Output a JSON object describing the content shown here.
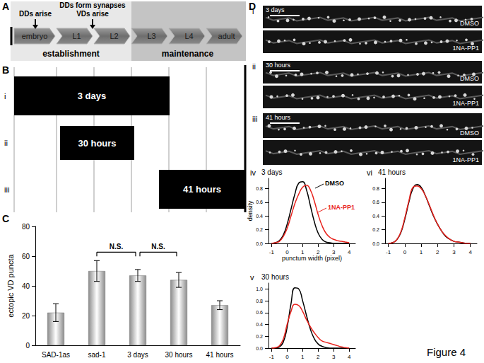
{
  "figure_label": "Figure 4",
  "panel_a": {
    "label": "A",
    "stages": [
      "embryo",
      "L1",
      "L2",
      "L3",
      "L4",
      "adult"
    ],
    "phases": [
      "establishment",
      "maintenance"
    ],
    "events": [
      {
        "lines": [
          "DDs arise"
        ],
        "stage": "embryo"
      },
      {
        "lines": [
          "DDs form synapses",
          "VDs arise"
        ],
        "stage": "L1"
      }
    ]
  },
  "panel_b": {
    "label": "B",
    "treatments": [
      {
        "label": "i",
        "text": "3 days"
      },
      {
        "label": "ii",
        "text": "30 hours"
      },
      {
        "label": "iii",
        "text": "41 hours"
      }
    ]
  },
  "panel_d": {
    "label": "D",
    "images": [
      {
        "label": "i",
        "title": "3 days",
        "rows": [
          "DMSO",
          "1NA-PP1"
        ]
      },
      {
        "label": "ii",
        "title": "30 hours",
        "rows": [
          "DMSO",
          "1NA-PP1"
        ]
      },
      {
        "label": "iii",
        "title": "41 hours",
        "rows": [
          "DMSO",
          "1NA-PP1"
        ]
      }
    ]
  },
  "chart_data": [
    {
      "type": "bar",
      "panel_label": "C",
      "y_label": "ectopic VD puncta",
      "categories": [
        "SAD-1as",
        "sad-1",
        "3 days",
        "30 hours",
        "41 hours"
      ],
      "values": [
        22,
        50,
        47,
        44,
        27
      ],
      "errors": [
        6,
        7,
        4,
        5,
        3
      ],
      "color": "#8c8c8c",
      "ylim": [
        0,
        80
      ],
      "yticks": [
        0,
        20,
        40,
        60,
        80
      ],
      "annotations": [
        {
          "from": "sad-1",
          "to": "3 days",
          "text": "N.S."
        },
        {
          "from": "3 days",
          "to": "30 hours",
          "text": "N.S."
        }
      ]
    },
    {
      "type": "line",
      "panel_label": "iv",
      "title": "3 days",
      "x_label": "punctum width (pixel)",
      "y_label": "density",
      "x": [
        -1,
        -0.75,
        -0.5,
        -0.25,
        0,
        0.25,
        0.5,
        0.75,
        1,
        1.25,
        1.5,
        1.75,
        2,
        2.25,
        2.5,
        2.75,
        3,
        3.25,
        3.5,
        3.75,
        4
      ],
      "series": [
        {
          "name": "DMSO",
          "color": "#000000",
          "values": [
            0,
            0.01,
            0.04,
            0.12,
            0.28,
            0.5,
            0.72,
            0.88,
            0.9,
            0.78,
            0.55,
            0.32,
            0.15,
            0.06,
            0.02,
            0.01,
            0,
            0,
            0,
            0,
            0
          ]
        },
        {
          "name": "1NA-PP1",
          "color": "#e8221c",
          "values": [
            0,
            0.01,
            0.03,
            0.1,
            0.22,
            0.4,
            0.58,
            0.72,
            0.82,
            0.85,
            0.78,
            0.62,
            0.42,
            0.26,
            0.15,
            0.09,
            0.06,
            0.04,
            0.03,
            0.02,
            0.01
          ]
        }
      ],
      "xlim": [
        -1.2,
        4.4
      ],
      "xticks": [
        -1,
        0,
        1,
        2,
        3,
        4
      ],
      "ylim": [
        0,
        0.95
      ],
      "yticks": [
        {
          "value": 0,
          "label": "0.0"
        },
        0.2,
        0.4,
        0.6,
        0.8
      ],
      "annotations": [
        "DMSO",
        "1NA-PP1"
      ]
    },
    {
      "type": "line",
      "panel_label": "v",
      "title": "30 hours",
      "x": [
        -1,
        -0.75,
        -0.5,
        -0.25,
        0,
        0.25,
        0.5,
        0.75,
        1,
        1.25,
        1.5,
        1.75,
        2,
        2.25,
        2.5,
        2.75,
        3,
        3.25,
        3.5,
        3.75,
        4
      ],
      "series": [
        {
          "name": "DMSO",
          "color": "#000000",
          "values": [
            0,
            0,
            0.02,
            0.1,
            0.35,
            0.75,
            1.02,
            1.0,
            0.8,
            0.55,
            0.32,
            0.16,
            0.07,
            0.03,
            0.01,
            0,
            0,
            0,
            0,
            0,
            0
          ]
        },
        {
          "name": "1NA-PP1",
          "color": "#e8221c",
          "values": [
            0,
            0.01,
            0.04,
            0.15,
            0.4,
            0.62,
            0.74,
            0.72,
            0.62,
            0.48,
            0.36,
            0.26,
            0.18,
            0.12,
            0.1,
            0.08,
            0.06,
            0.04,
            0.02,
            0.01,
            0
          ]
        }
      ],
      "xlim": [
        -1.2,
        4.4
      ],
      "xticks": [
        -1,
        0,
        1,
        2,
        3,
        4
      ],
      "ylim": [
        0,
        1.1
      ],
      "yticks": [
        {
          "value": 0,
          "label": "0.0"
        },
        0.2,
        0.4,
        0.6,
        0.8,
        {
          "value": 1,
          "label": "1.0"
        }
      ]
    },
    {
      "type": "line",
      "panel_label": "vi",
      "title": "41 hours",
      "x": [
        -1,
        -0.75,
        -0.5,
        -0.25,
        0,
        0.25,
        0.5,
        0.75,
        1,
        1.25,
        1.5,
        1.75,
        2,
        2.25,
        2.5,
        2.75,
        3,
        3.25,
        3.5,
        3.75,
        4
      ],
      "series": [
        {
          "name": "DMSO",
          "color": "#000000",
          "values": [
            0,
            0.01,
            0.05,
            0.15,
            0.35,
            0.6,
            0.8,
            0.86,
            0.82,
            0.7,
            0.55,
            0.4,
            0.28,
            0.18,
            0.1,
            0.06,
            0.03,
            0.02,
            0.01,
            0,
            0
          ]
        },
        {
          "name": "1NA-PP1",
          "color": "#e8221c",
          "values": [
            0,
            0.01,
            0.05,
            0.16,
            0.37,
            0.62,
            0.82,
            0.84,
            0.8,
            0.7,
            0.56,
            0.41,
            0.28,
            0.18,
            0.11,
            0.06,
            0.03,
            0.02,
            0.01,
            0,
            0
          ]
        }
      ],
      "xlim": [
        -1.2,
        4.4
      ],
      "xticks": [
        -1,
        0,
        1,
        2,
        3,
        4
      ],
      "ylim": [
        0,
        0.95
      ],
      "yticks": [
        {
          "value": 0,
          "label": "0.0"
        },
        0.2,
        0.4,
        0.6,
        0.8
      ]
    }
  ]
}
